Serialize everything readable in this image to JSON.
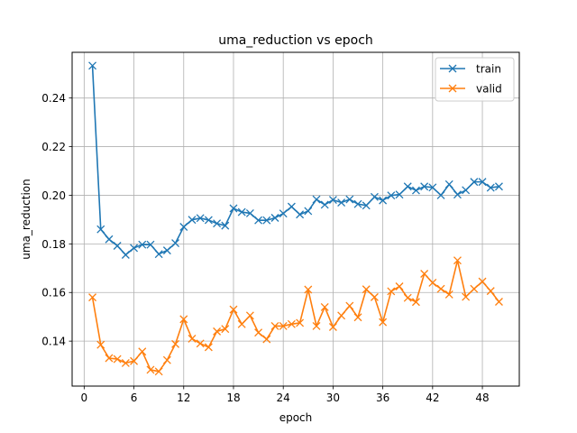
{
  "chart_data": {
    "type": "line",
    "title": "uma_reduction vs epoch",
    "xlabel": "epoch",
    "ylabel": "uma_reduction",
    "xlim": [
      -1.45,
      52.45
    ],
    "ylim": [
      0.1215,
      0.2588
    ],
    "xticks": [
      0,
      6,
      12,
      18,
      24,
      30,
      36,
      42,
      48
    ],
    "yticks": [
      0.14,
      0.16,
      0.18,
      0.2,
      0.22,
      0.24
    ],
    "ytick_labels": [
      "0.14",
      "0.16",
      "0.18",
      "0.20",
      "0.22",
      "0.24"
    ],
    "grid": true,
    "legend_position": "upper right",
    "x": [
      1,
      2,
      3,
      4,
      5,
      6,
      7,
      8,
      9,
      10,
      11,
      12,
      13,
      14,
      15,
      16,
      17,
      18,
      19,
      20,
      21,
      22,
      23,
      24,
      25,
      26,
      27,
      28,
      29,
      30,
      31,
      32,
      33,
      34,
      35,
      36,
      37,
      38,
      39,
      40,
      41,
      42,
      43,
      44,
      45,
      46,
      47,
      48,
      49,
      50
    ],
    "series": [
      {
        "name": "train",
        "color": "#1f77b4",
        "marker": "x",
        "values": [
          0.2533,
          0.186,
          0.1819,
          0.1792,
          0.1755,
          0.1783,
          0.1797,
          0.1797,
          0.1758,
          0.1773,
          0.1803,
          0.187,
          0.1899,
          0.1906,
          0.1898,
          0.1884,
          0.1875,
          0.1946,
          0.1931,
          0.1926,
          0.1897,
          0.1897,
          0.1907,
          0.1925,
          0.1953,
          0.1921,
          0.1935,
          0.1983,
          0.1961,
          0.1981,
          0.197,
          0.1983,
          0.1964,
          0.1958,
          0.1993,
          0.1979,
          0.1999,
          0.2003,
          0.2036,
          0.202,
          0.2036,
          0.2032,
          0.2,
          0.2045,
          0.2003,
          0.2021,
          0.2055,
          0.2055,
          0.2031,
          0.2036
        ]
      },
      {
        "name": "valid",
        "color": "#ff7f0e",
        "marker": "x",
        "values": [
          0.158,
          0.1385,
          0.133,
          0.1326,
          0.131,
          0.1318,
          0.1357,
          0.1282,
          0.1275,
          0.1322,
          0.1388,
          0.149,
          0.141,
          0.139,
          0.1375,
          0.144,
          0.145,
          0.153,
          0.147,
          0.1505,
          0.1435,
          0.1408,
          0.1462,
          0.1462,
          0.147,
          0.1475,
          0.1612,
          0.1462,
          0.154,
          0.1458,
          0.1505,
          0.1545,
          0.1498,
          0.1613,
          0.1581,
          0.1478,
          0.1605,
          0.1625,
          0.1578,
          0.1561,
          0.1677,
          0.164,
          0.1615,
          0.1592,
          0.1732,
          0.1582,
          0.1615,
          0.1645,
          0.1606,
          0.1562
        ]
      }
    ]
  }
}
